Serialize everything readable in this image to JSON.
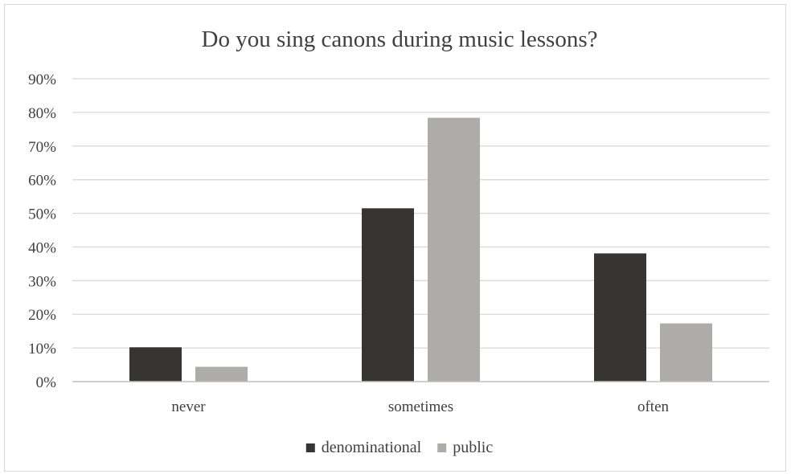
{
  "chart_data": {
    "type": "bar",
    "title": "Do you sing canons during music lessons?",
    "categories": [
      "never",
      "sometimes",
      "often"
    ],
    "series": [
      {
        "name": "denominational",
        "color": "#363533",
        "values": [
          10.2,
          51.5,
          38.1
        ]
      },
      {
        "name": "public",
        "color": "#aeacab",
        "values": [
          4.4,
          78.4,
          17.3
        ]
      }
    ],
    "yticks": [
      "0%",
      "10%",
      "20%",
      "30%",
      "40%",
      "50%",
      "60%",
      "70%",
      "80%",
      "90%"
    ],
    "ylim": [
      0,
      90
    ],
    "unit": "%",
    "grid": true,
    "legend": "bottom-center",
    "gridColor": "#d9d9d9",
    "axisColor": "#bfbfbf"
  }
}
